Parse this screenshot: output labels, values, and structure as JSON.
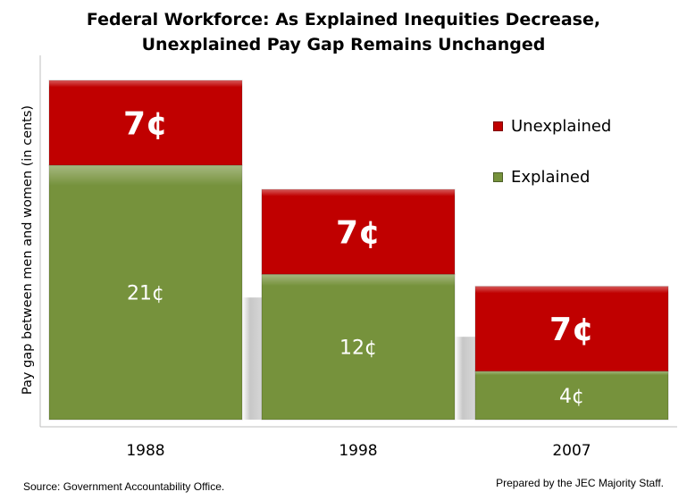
{
  "title_line1": "Federal Workforce: As Explained Inequities Decrease,",
  "title_line2": "Unexplained Pay Gap Remains Unchanged",
  "source_note": "Source: Government Accountability Office.",
  "credit_note": "Prepared by the JEC Majority Staff.",
  "colors": {
    "unexplained": "#c00000",
    "explained": "#76923c",
    "label_text": "#ffffff"
  },
  "chart_data": {
    "type": "bar",
    "stacked": true,
    "title": "Federal Workforce: As Explained Inequities Decrease, Unexplained Pay Gap Remains Unchanged",
    "xlabel": "",
    "ylabel": "Pay gap between men and women (in cents)",
    "categories": [
      "1988",
      "1998",
      "2007"
    ],
    "series": [
      {
        "name": "Explained",
        "values": [
          21,
          12,
          4
        ],
        "labels": [
          "21¢",
          "12¢",
          "4¢"
        ]
      },
      {
        "name": "Unexplained",
        "values": [
          7,
          7,
          7
        ],
        "labels": [
          "7¢",
          "7¢",
          "7¢"
        ]
      }
    ],
    "legend": [
      "Unexplained",
      "Explained"
    ],
    "legend_position": "top-right",
    "ylim": [
      0,
      28
    ],
    "grid": false
  }
}
